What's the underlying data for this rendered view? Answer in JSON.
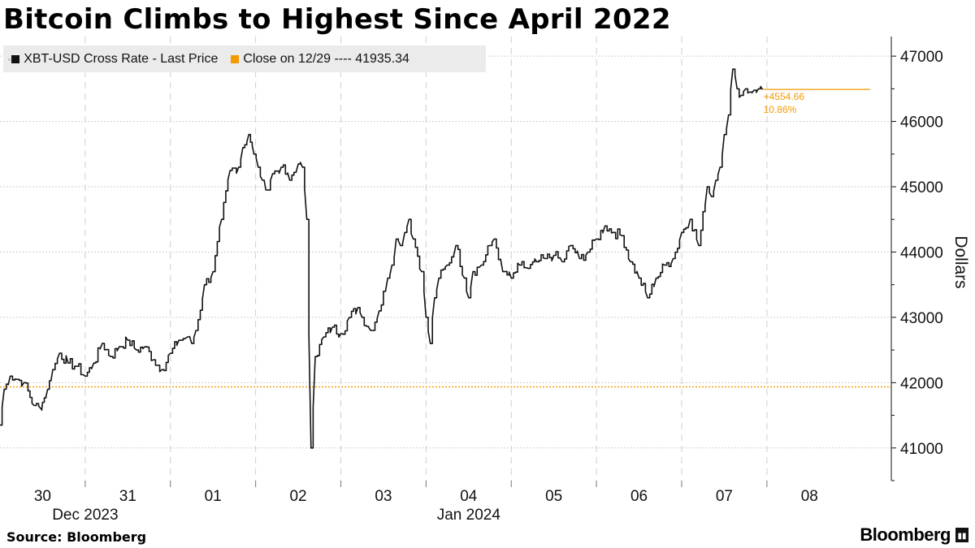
{
  "title": "Bitcoin Climbs to Highest Since April 2022",
  "legend": {
    "series_label": "XBT-USD Cross Rate - Last Price",
    "close_label": "Close on 12/29 ---- 41935.34",
    "series_color": "#111111",
    "close_color": "#f39a00"
  },
  "source": "Source: Bloomberg",
  "brand": "Bloomberg",
  "chart_data": {
    "type": "line",
    "ylabel": "Dollars",
    "ylim": [
      40500,
      47300
    ],
    "yticks": [
      41000,
      42000,
      43000,
      44000,
      45000,
      46000,
      47000
    ],
    "x_days": [
      "30",
      "31",
      "01",
      "02",
      "03",
      "04",
      "05",
      "06",
      "07",
      "08"
    ],
    "x_months": [
      "Dec 2023",
      "Jan 2024"
    ],
    "xlim": [
      -0.5,
      9.96
    ],
    "reference_line": {
      "label": "Close on 12/29",
      "value": 41935.34,
      "color": "#f39a00"
    },
    "annotation": {
      "change": "+4554.66",
      "pct": "10.86%",
      "value": 46490.0
    },
    "series": [
      {
        "name": "XBT-USD Cross Rate - Last Price",
        "x": [
          -0.5,
          -0.45,
          -0.38,
          -0.3,
          -0.22,
          -0.1,
          -0.02,
          0.0,
          0.06,
          0.12,
          0.2,
          0.3,
          0.4,
          0.5,
          0.6,
          0.7,
          0.8,
          0.9,
          1.0,
          1.1,
          1.2,
          1.3,
          1.4,
          1.5,
          1.6,
          1.7,
          1.75,
          1.8,
          1.9,
          2.0,
          2.1,
          2.2,
          2.3,
          2.35,
          2.42,
          2.48,
          2.53,
          2.58,
          2.62,
          2.7,
          2.8,
          2.9,
          3.0,
          3.05,
          3.1,
          3.15,
          3.2,
          3.3,
          3.4,
          3.5,
          3.6,
          3.7,
          3.75,
          3.85,
          3.95,
          4.05,
          4.1,
          4.15,
          4.2,
          4.25,
          4.3,
          4.35,
          4.45,
          4.5,
          4.55,
          4.6,
          4.65,
          4.75,
          4.85,
          4.95,
          5.0,
          5.05,
          5.15,
          5.25,
          5.3,
          5.4,
          5.5,
          5.6,
          5.7,
          5.8,
          5.9,
          6.0,
          6.1,
          6.2,
          6.3,
          6.4,
          6.5,
          6.6,
          6.7,
          6.8,
          6.9,
          7.0,
          7.1,
          7.2,
          7.3,
          7.4,
          7.5,
          7.6,
          7.7,
          7.8,
          7.85,
          7.9,
          7.95,
          8.0,
          8.05,
          8.1,
          8.15,
          8.2,
          8.25,
          8.3,
          8.35,
          8.4,
          8.45
        ],
        "values": [
          41350,
          41900,
          42100,
          42050,
          42000,
          41650,
          41600,
          41700,
          41900,
          42200,
          42450,
          42300,
          42250,
          42100,
          42300,
          42600,
          42400,
          42550,
          42650,
          42500,
          42550,
          42350,
          42200,
          42450,
          42650,
          42700,
          42600,
          42800,
          43500,
          43700,
          44500,
          45250,
          45300,
          45600,
          45800,
          45500,
          45300,
          45100,
          44950,
          45200,
          45300,
          45100,
          45350,
          45300,
          44500,
          41000,
          42400,
          42700,
          42850,
          42750,
          43000,
          43150,
          43000,
          42800,
          43100,
          43600,
          43800,
          44200,
          44100,
          44300,
          44500,
          44200,
          43700,
          43000,
          42600,
          43300,
          43600,
          43800,
          44100,
          43600,
          43300,
          43700,
          43800,
          44100,
          44200,
          43700,
          43600,
          43800,
          43750,
          43850,
          43900,
          43950,
          43850,
          44100,
          43900,
          44000,
          44200,
          44400,
          44300,
          44250,
          43850,
          43600,
          43300,
          43600,
          43800,
          43900,
          44300,
          44500,
          44100,
          45000,
          44850,
          45100,
          45300,
          45800,
          46100,
          46800,
          46500,
          46400,
          46500,
          46450,
          46480,
          46500,
          46490
        ]
      }
    ]
  }
}
